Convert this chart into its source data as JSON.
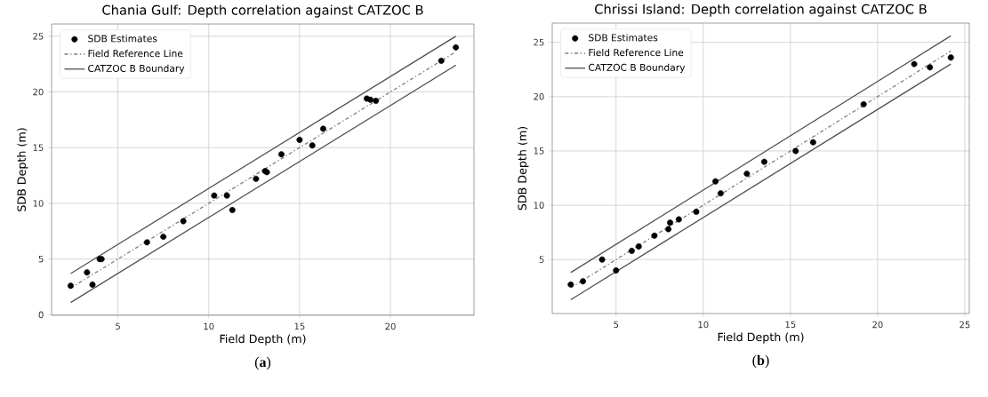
{
  "chart_data": [
    {
      "type": "scatter",
      "title": "Chania Gulf: Depth correlation against CATZOC B",
      "xlabel": "Field Depth (m)",
      "ylabel": "SDB Depth (m)",
      "xlim": [
        1.35,
        24.6
      ],
      "ylim": [
        -0.05,
        26.1
      ],
      "xticks": [
        5,
        10,
        15,
        20
      ],
      "yticks": [
        0,
        5,
        10,
        15,
        20,
        25
      ],
      "grid": true,
      "legend": "top left",
      "annotations": [
        "(**a**)"
      ],
      "series": [
        {
          "name": "SDB Estimates",
          "marker": "circle",
          "color": "#000000",
          "x": [
            2.4,
            3.3,
            3.6,
            4.0,
            4.1,
            6.6,
            7.5,
            8.6,
            10.3,
            11.0,
            11.3,
            12.6,
            13.1,
            13.2,
            14.0,
            15.0,
            15.7,
            16.3,
            18.7,
            18.9,
            19.2,
            22.8,
            23.6
          ],
          "values": [
            2.6,
            3.8,
            2.7,
            5.0,
            5.0,
            6.5,
            7.0,
            8.4,
            10.7,
            10.7,
            9.4,
            12.2,
            12.9,
            12.8,
            14.4,
            15.7,
            15.2,
            16.7,
            19.4,
            19.3,
            19.2,
            22.8,
            24.0
          ]
        },
        {
          "name": "Field Reference Line",
          "type": "line",
          "line_style": "dashdot",
          "color": "#808080",
          "x": [
            2.4,
            23.6
          ],
          "values": [
            2.4,
            23.6
          ]
        },
        {
          "name": "CATZOC B Boundary",
          "type": "line",
          "line_style": "solid",
          "color": "#555555",
          "x": [
            2.4,
            23.6
          ],
          "values": [
            3.7,
            25.0
          ]
        },
        {
          "type": "line",
          "line_style": "solid",
          "color": "#555555",
          "x": [
            2.4,
            23.6
          ],
          "values": [
            1.1,
            22.4
          ]
        }
      ]
    },
    {
      "type": "scatter",
      "title": "Chrissi Island: Depth correlation against CATZOC B",
      "xlabel": "Field Depth (m)",
      "ylabel": "SDB Depth (m)",
      "xlim": [
        1.34,
        25.26
      ],
      "ylim": [
        0.03,
        26.77
      ],
      "xticks": [
        5,
        10,
        15,
        20,
        25
      ],
      "yticks": [
        5,
        10,
        15,
        20,
        25
      ],
      "grid": true,
      "legend": "top left",
      "annotations": [
        "(**b**)"
      ],
      "series": [
        {
          "name": "SDB Estimates",
          "marker": "circle",
          "color": "#000000",
          "x": [
            2.4,
            3.1,
            4.2,
            5.0,
            5.9,
            6.3,
            7.2,
            8.0,
            8.1,
            8.6,
            9.6,
            10.7,
            11.0,
            12.5,
            13.5,
            15.3,
            16.3,
            19.2,
            22.1,
            23.0,
            24.2
          ],
          "values": [
            2.7,
            3.0,
            5.0,
            4.0,
            5.8,
            6.2,
            7.2,
            7.8,
            8.4,
            8.7,
            9.4,
            12.2,
            11.1,
            12.9,
            14.0,
            15.0,
            15.8,
            19.3,
            23.0,
            22.7,
            23.6
          ]
        },
        {
          "name": "Field Reference Line",
          "type": "line",
          "line_style": "dashdot",
          "color": "#808080",
          "x": [
            2.4,
            24.2
          ],
          "values": [
            2.4,
            24.2
          ]
        },
        {
          "name": "CATZOC B Boundary",
          "type": "line",
          "line_style": "solid",
          "color": "#555555",
          "x": [
            2.4,
            24.2
          ],
          "values": [
            3.8,
            25.6
          ]
        },
        {
          "type": "line",
          "line_style": "solid",
          "color": "#555555",
          "x": [
            2.4,
            24.2
          ],
          "values": [
            1.3,
            23.0
          ]
        }
      ]
    }
  ]
}
